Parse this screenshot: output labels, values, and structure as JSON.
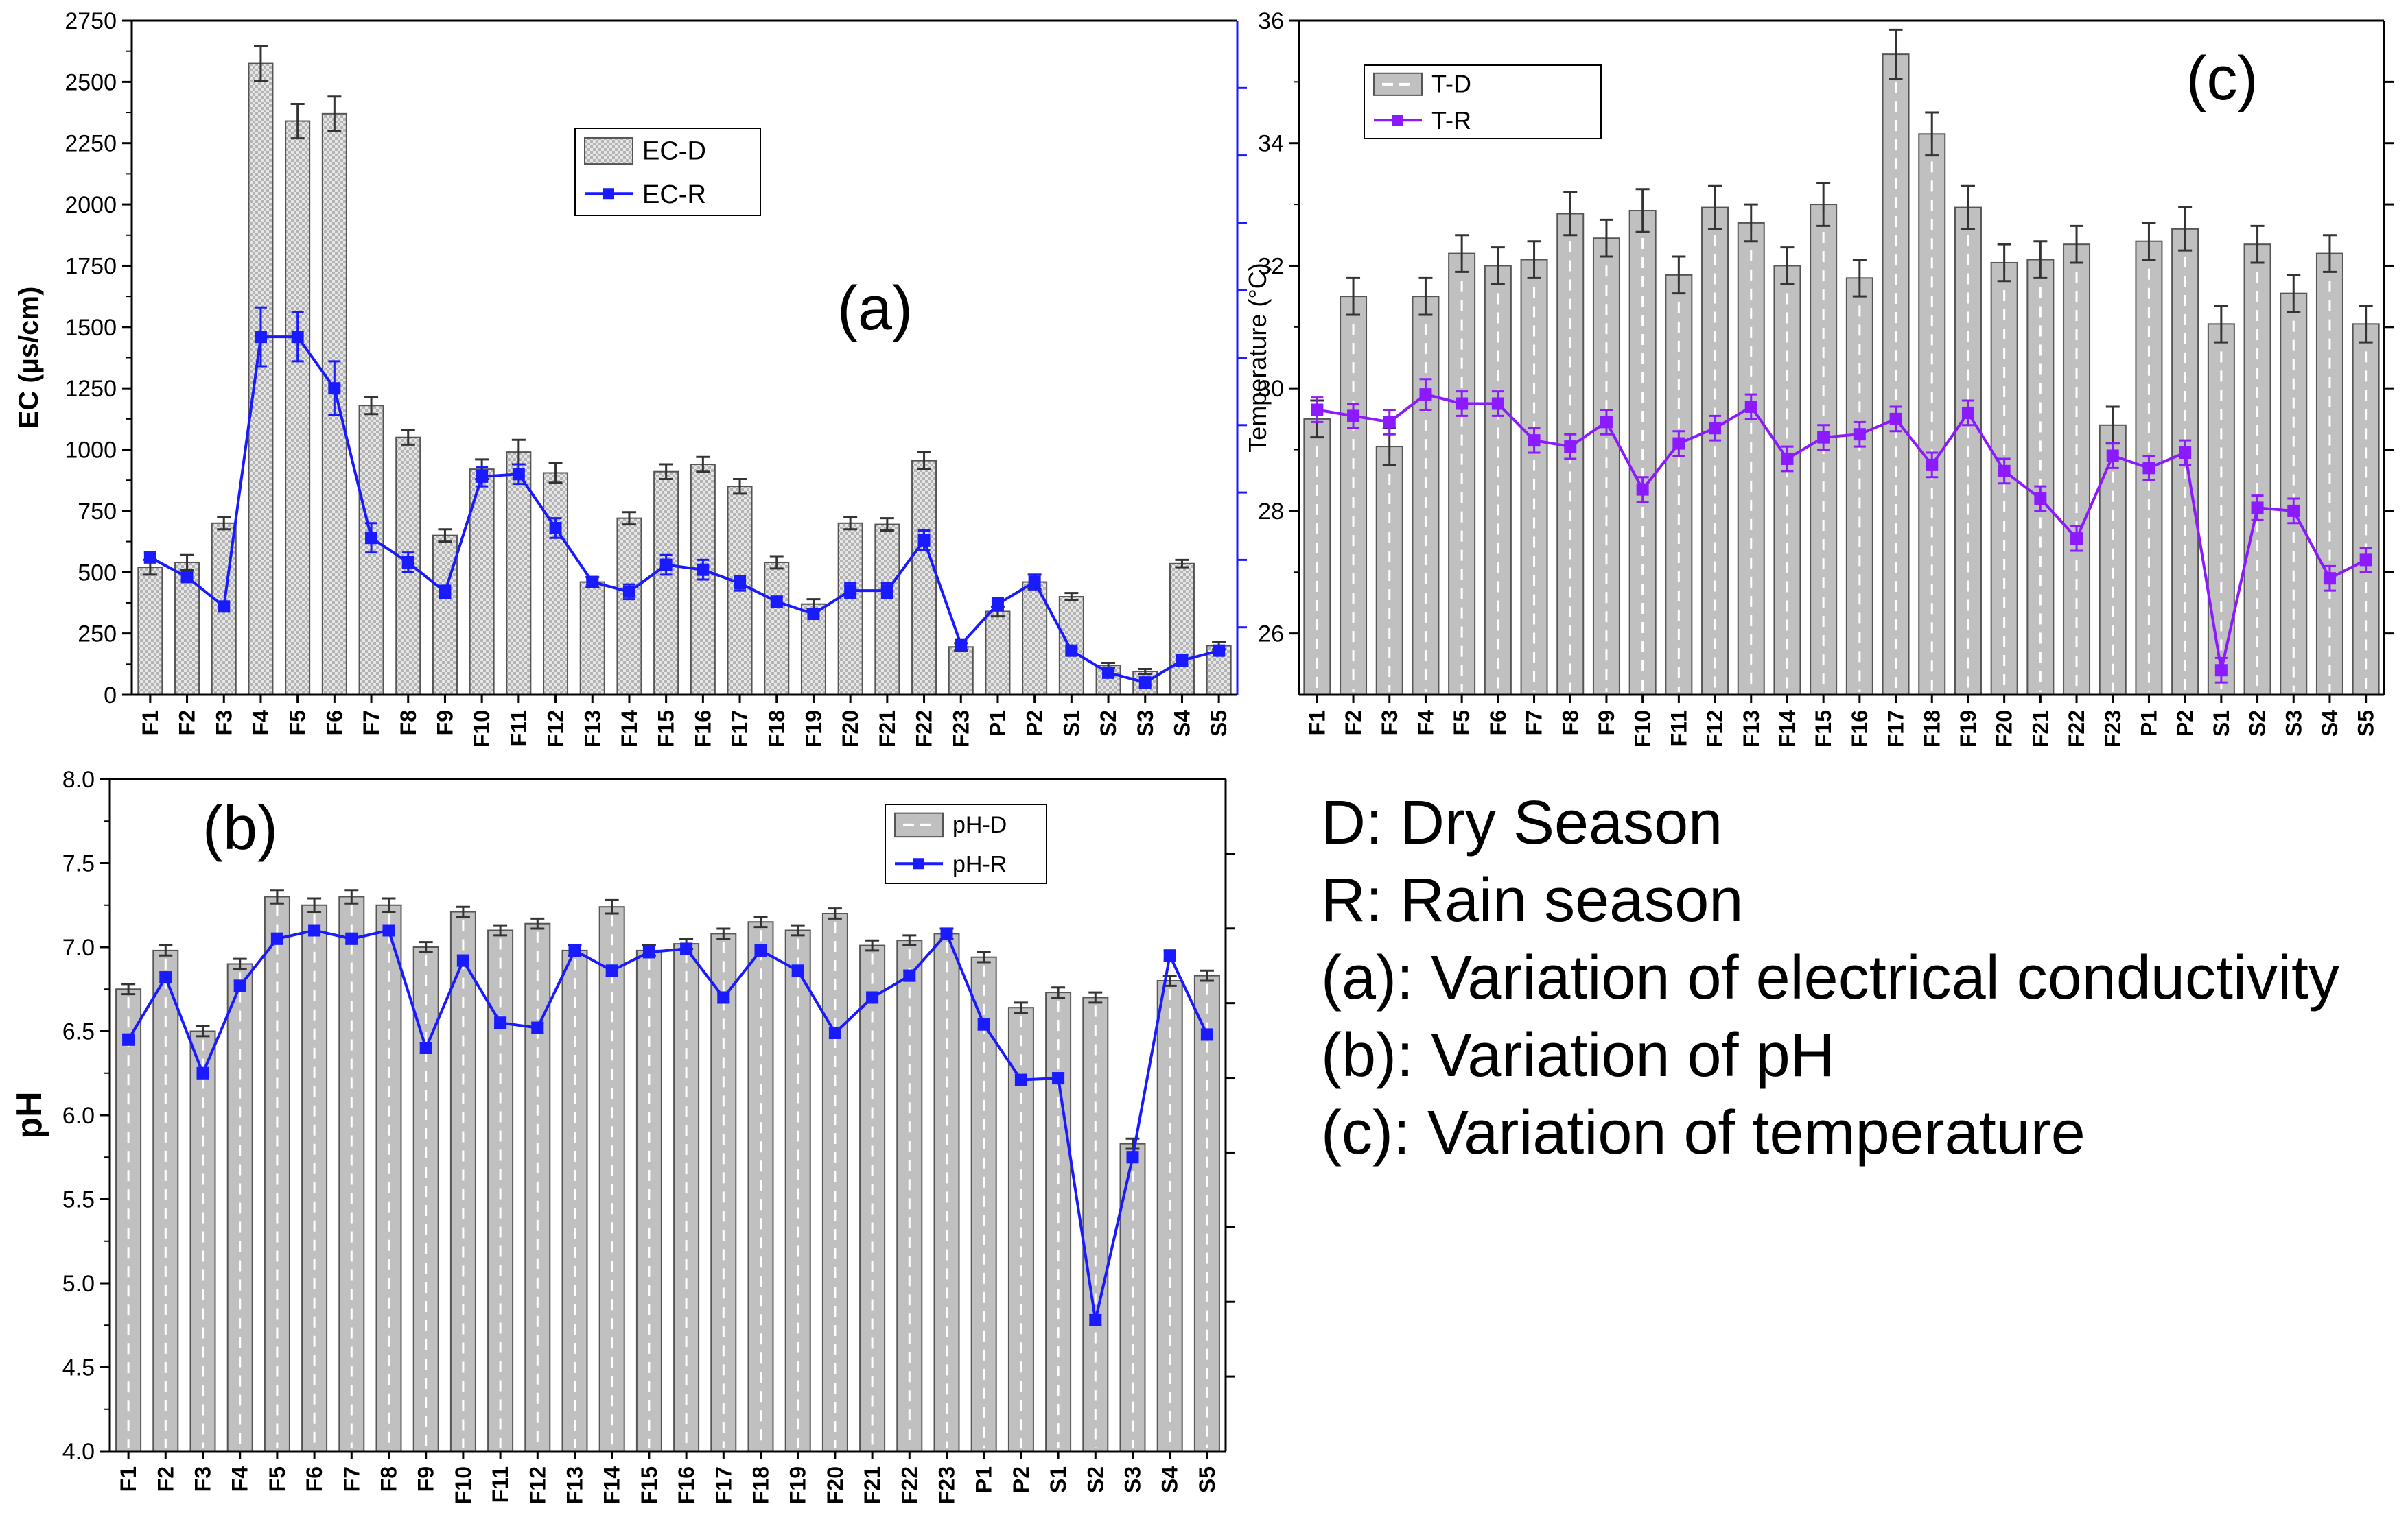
{
  "chart_data": [
    {
      "id": "a",
      "type": "bar",
      "panel_label": "(a)",
      "title": "",
      "xlabel": "",
      "ylabel": "EC (µs/cm)",
      "secondary_ylabel": "",
      "ylim": [
        0,
        2750
      ],
      "yticks": [
        "0",
        "250",
        "500",
        "750",
        "1000",
        "1250",
        "1500",
        "1750",
        "2000",
        "2250",
        "2500",
        "2750"
      ],
      "categories": [
        "F1",
        "F2",
        "F3",
        "F4",
        "F5",
        "F6",
        "F7",
        "F8",
        "F9",
        "F10",
        "F11",
        "F12",
        "F13",
        "F14",
        "F15",
        "F16",
        "F17",
        "F18",
        "F19",
        "F20",
        "F21",
        "F22",
        "F23",
        "P1",
        "P2",
        "S1",
        "S2",
        "S3",
        "S4",
        "S5"
      ],
      "legend_position": "upper-center",
      "series": [
        {
          "name": "EC-D",
          "kind": "bar",
          "color": "#c8c8c8",
          "values": [
            520,
            540,
            700,
            2575,
            2340,
            2370,
            1180,
            1050,
            650,
            920,
            990,
            905,
            460,
            720,
            910,
            940,
            850,
            540,
            370,
            700,
            695,
            955,
            195,
            340,
            460,
            400,
            120,
            95,
            535,
            200
          ],
          "errors": [
            30,
            30,
            25,
            70,
            70,
            70,
            35,
            30,
            25,
            40,
            50,
            40,
            20,
            25,
            30,
            30,
            30,
            25,
            20,
            25,
            25,
            35,
            15,
            20,
            30,
            15,
            10,
            10,
            15,
            15
          ]
        },
        {
          "name": "EC-R",
          "kind": "line",
          "color": "#1a1aff",
          "values": [
            560,
            480,
            360,
            1460,
            1460,
            1250,
            640,
            540,
            420,
            890,
            900,
            680,
            460,
            420,
            530,
            510,
            455,
            380,
            330,
            425,
            425,
            630,
            205,
            370,
            460,
            180,
            90,
            50,
            140,
            180
          ],
          "errors": [
            20,
            20,
            20,
            120,
            100,
            110,
            60,
            40,
            25,
            40,
            40,
            40,
            15,
            30,
            40,
            40,
            30,
            20,
            20,
            30,
            30,
            40,
            15,
            25,
            30,
            15,
            15,
            15,
            20,
            20
          ]
        }
      ]
    },
    {
      "id": "b",
      "type": "bar",
      "panel_label": "(b)",
      "title": "",
      "xlabel": "",
      "ylabel": "pH",
      "ylim": [
        4.0,
        8.0
      ],
      "yticks": [
        "4.0",
        "4.5",
        "5.0",
        "5.5",
        "6.0",
        "6.5",
        "7.0",
        "7.5",
        "8.0"
      ],
      "categories": [
        "F1",
        "F2",
        "F3",
        "F4",
        "F5",
        "F6",
        "F7",
        "F8",
        "F9",
        "F10",
        "F11",
        "F12",
        "F13",
        "F14",
        "F15",
        "F16",
        "F17",
        "F18",
        "F19",
        "F20",
        "F21",
        "F22",
        "F23",
        "P1",
        "P2",
        "S1",
        "S2",
        "S3",
        "S4",
        "S5"
      ],
      "legend_position": "top-right",
      "series": [
        {
          "name": "pH-D",
          "kind": "bar",
          "color": "#c0c0c0",
          "values": [
            6.75,
            6.98,
            6.5,
            6.9,
            7.3,
            7.25,
            7.3,
            7.25,
            7.0,
            7.21,
            7.1,
            7.14,
            6.98,
            7.24,
            6.98,
            7.02,
            7.08,
            7.15,
            7.1,
            7.2,
            7.01,
            7.04,
            7.08,
            6.94,
            6.64,
            6.73,
            6.7,
            5.83,
            6.8,
            6.83
          ],
          "errors": [
            0.03,
            0.03,
            0.03,
            0.03,
            0.04,
            0.04,
            0.04,
            0.04,
            0.03,
            0.03,
            0.03,
            0.03,
            0.03,
            0.04,
            0.03,
            0.03,
            0.03,
            0.03,
            0.03,
            0.03,
            0.03,
            0.03,
            0.03,
            0.03,
            0.03,
            0.03,
            0.03,
            0.03,
            0.03,
            0.03
          ]
        },
        {
          "name": "pH-R",
          "kind": "line",
          "color": "#1a1aff",
          "values": [
            6.45,
            6.82,
            6.25,
            6.77,
            7.05,
            7.1,
            7.05,
            7.1,
            6.4,
            6.92,
            6.55,
            6.52,
            6.98,
            6.86,
            6.97,
            6.99,
            6.7,
            6.98,
            6.86,
            6.49,
            6.7,
            6.83,
            7.08,
            6.54,
            6.21,
            6.22,
            4.78,
            5.75,
            6.95,
            6.48
          ],
          "errors": [
            0.03,
            0.03,
            0.03,
            0.03,
            0.03,
            0.03,
            0.03,
            0.03,
            0.03,
            0.03,
            0.03,
            0.03,
            0.03,
            0.03,
            0.03,
            0.03,
            0.03,
            0.03,
            0.03,
            0.03,
            0.03,
            0.03,
            0.03,
            0.03,
            0.03,
            0.03,
            0.03,
            0.03,
            0.03,
            0.03
          ]
        }
      ]
    },
    {
      "id": "c",
      "type": "bar",
      "panel_label": "(c)",
      "title": "",
      "xlabel": "",
      "ylabel": "Temperature (°C)",
      "ylim": [
        25,
        36
      ],
      "yticks": [
        "26",
        "28",
        "30",
        "32",
        "34",
        "36"
      ],
      "categories": [
        "F1",
        "F2",
        "F3",
        "F4",
        "F5",
        "F6",
        "F7",
        "F8",
        "F9",
        "F10",
        "F11",
        "F12",
        "F13",
        "F14",
        "F15",
        "F16",
        "F17",
        "F18",
        "F19",
        "F20",
        "F21",
        "F22",
        "F23",
        "P1",
        "P2",
        "S1",
        "S2",
        "S3",
        "S4",
        "S5"
      ],
      "legend_position": "top-left",
      "series": [
        {
          "name": "T-D",
          "kind": "bar",
          "color": "#c0c0c0",
          "values": [
            29.5,
            31.5,
            29.05,
            31.5,
            32.2,
            32.0,
            32.1,
            32.85,
            32.45,
            32.9,
            31.85,
            32.95,
            32.7,
            32.0,
            33.0,
            31.8,
            35.45,
            34.15,
            32.95,
            32.05,
            32.1,
            32.35,
            29.4,
            32.4,
            32.6,
            31.05,
            32.35,
            31.55,
            32.2,
            31.05
          ],
          "errors": [
            0.3,
            0.3,
            0.3,
            0.3,
            0.3,
            0.3,
            0.3,
            0.35,
            0.3,
            0.35,
            0.3,
            0.35,
            0.3,
            0.3,
            0.35,
            0.3,
            0.4,
            0.35,
            0.35,
            0.3,
            0.3,
            0.3,
            0.3,
            0.3,
            0.35,
            0.3,
            0.3,
            0.3,
            0.3,
            0.3
          ]
        },
        {
          "name": "T-R",
          "kind": "line",
          "color": "#8b1aff",
          "values": [
            29.65,
            29.55,
            29.45,
            29.9,
            29.75,
            29.75,
            29.15,
            29.05,
            29.45,
            28.35,
            29.1,
            29.35,
            29.7,
            28.85,
            29.2,
            29.25,
            29.5,
            28.75,
            29.6,
            28.65,
            28.2,
            27.55,
            28.9,
            28.7,
            28.95,
            25.4,
            28.05,
            28.0,
            26.9,
            27.2
          ],
          "errors": [
            0.2,
            0.2,
            0.2,
            0.25,
            0.2,
            0.2,
            0.2,
            0.2,
            0.2,
            0.2,
            0.2,
            0.2,
            0.2,
            0.2,
            0.2,
            0.2,
            0.2,
            0.2,
            0.2,
            0.2,
            0.2,
            0.2,
            0.2,
            0.2,
            0.2,
            0.2,
            0.2,
            0.2,
            0.2,
            0.2
          ]
        }
      ]
    }
  ],
  "key_text": {
    "line1": "D: Dry Season",
    "line2": "R: Rain season",
    "line3": "(a): Variation of electrical conductivity",
    "line4": "(b): Variation of pH",
    "line5": "(c): Variation of temperature"
  },
  "colors": {
    "axis": "#000000",
    "secondary_axis_a": "#1a1aff",
    "bar_fill": "#c0c0c0",
    "bar_stroke": "#555555"
  }
}
